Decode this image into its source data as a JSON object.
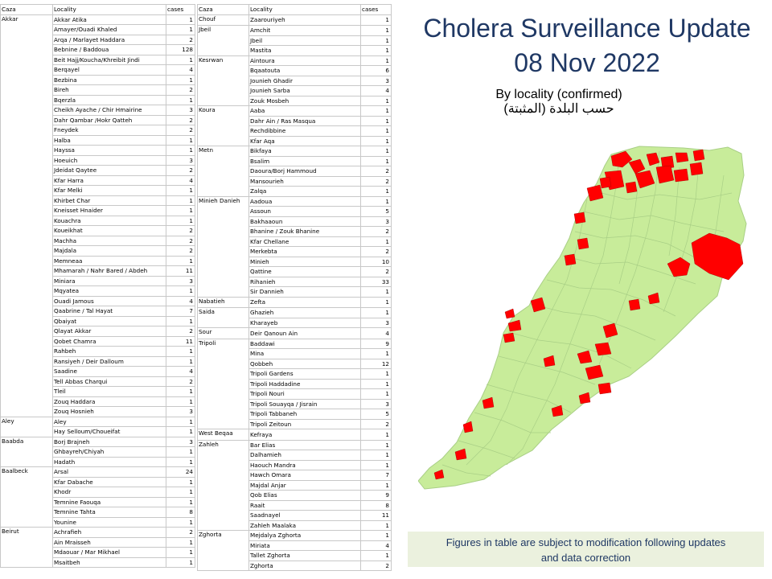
{
  "title": {
    "line1": "Cholera Surveillance Update",
    "line2": "08 Nov 2022"
  },
  "subtitle": {
    "en": "By locality (confirmed)",
    "ar": "حسب البلدة (المثبتة)"
  },
  "note": {
    "line1": "Figures in table are subject to modification following updates",
    "line2": "and data correction"
  },
  "colors": {
    "title": "#1f3864",
    "map_fill": "#c8ec9a",
    "map_borders": "#a9cf86",
    "cases_fill": "#ff0000",
    "note_bg": "#ebf1de"
  },
  "table_headers": {
    "caza": "Caza",
    "locality": "Locality",
    "cases": "cases"
  },
  "table1": [
    {
      "caza": "Akkar",
      "rows": [
        [
          "Akkar Atika",
          "1"
        ],
        [
          "Amayer/Ouadi Khaled",
          "1"
        ],
        [
          "Arqa / Marlayet Haddara",
          "2"
        ],
        [
          "Bebnine / Baddoua",
          "128"
        ],
        [
          "Beit Hajj/Koucha/Khreibit  Jindi",
          "1"
        ],
        [
          "Berqayel",
          "4"
        ],
        [
          "Bezbina",
          "1"
        ],
        [
          "Bireh",
          "2"
        ],
        [
          "Bqerzla",
          "1"
        ],
        [
          "Cheikh Ayache / Chir Hmairine",
          "3"
        ],
        [
          "Dahr Qambar /Hokr Qatteh",
          "2"
        ],
        [
          "Fneydek",
          "2"
        ],
        [
          "Halba",
          "1"
        ],
        [
          "Hayssa",
          "1"
        ],
        [
          "Hoeuich",
          "3"
        ],
        [
          "Jdeidat Qaytee",
          "2"
        ],
        [
          "Kfar Harra",
          "4"
        ],
        [
          "Kfar Melki",
          "1"
        ],
        [
          "Khirbet Char",
          "1"
        ],
        [
          "Kneisset Hnaider",
          "1"
        ],
        [
          "Kouachra",
          "1"
        ],
        [
          "Koueikhat",
          "2"
        ],
        [
          "Machha",
          "2"
        ],
        [
          "Majdala",
          "2"
        ],
        [
          "Memneaa",
          "1"
        ],
        [
          "Mhamarah / Nahr Bared  / Abdeh",
          "11"
        ],
        [
          "Miniara",
          "3"
        ],
        [
          "Mqyatea",
          "1"
        ],
        [
          "Ouadi Jamous",
          "4"
        ],
        [
          "Qaabrine / Tal Hayat",
          "7"
        ],
        [
          "Qbaiyat",
          "1"
        ],
        [
          "Qlayat Akkar",
          "2"
        ],
        [
          "Qobet Chamra",
          "11"
        ],
        [
          "Rahbeh",
          "1"
        ],
        [
          "Ransiyeh / Deir Dalloum",
          "1"
        ],
        [
          "Saadine",
          "4"
        ],
        [
          "Tell Abbas Charqui",
          "2"
        ],
        [
          "Tleil",
          "1"
        ],
        [
          "Zouq Haddara",
          "1"
        ],
        [
          "Zouq Hosnieh",
          "3"
        ]
      ]
    },
    {
      "caza": "Aley",
      "rows": [
        [
          "Aley",
          "1"
        ],
        [
          "Hay Selloum/Choueifat",
          "1"
        ]
      ]
    },
    {
      "caza": "Baabda",
      "rows": [
        [
          "Borj Brajneh",
          "3"
        ],
        [
          "Ghbayreh/Chiyah",
          "1"
        ],
        [
          "Hadath",
          "1"
        ]
      ]
    },
    {
      "caza": "Baalbeck",
      "rows": [
        [
          "Arsal",
          "24"
        ],
        [
          "Kfar Dabache",
          "1"
        ],
        [
          "Khodr",
          "1"
        ],
        [
          "Temnine Faouqa",
          "1"
        ],
        [
          "Temnine Tahta",
          "8"
        ],
        [
          "Younine",
          "1"
        ]
      ]
    },
    {
      "caza": "Beirut",
      "rows": [
        [
          "Achrafieh",
          "2"
        ],
        [
          "Ain Mraisseh",
          "1"
        ],
        [
          "Mdaouar / Mar Mikhael",
          "1"
        ],
        [
          "Msaitbeh",
          "1"
        ]
      ]
    }
  ],
  "table2": [
    {
      "caza": "Chouf",
      "rows": [
        [
          "Zaarouriyeh",
          "1"
        ]
      ]
    },
    {
      "caza": "Jbeil",
      "rows": [
        [
          "Amchit",
          "1"
        ],
        [
          "Jbeil",
          "1"
        ],
        [
          "Mastita",
          "1"
        ]
      ]
    },
    {
      "caza": "Kesrwan",
      "rows": [
        [
          "Aintoura",
          "1"
        ],
        [
          "Bqaatouta",
          "6"
        ],
        [
          "Jounieh Ghadir",
          "3"
        ],
        [
          "Jounieh Sarba",
          "4"
        ],
        [
          "Zouk Mosbeh",
          "1"
        ]
      ]
    },
    {
      "caza": "Koura",
      "rows": [
        [
          "Aaba",
          "1"
        ],
        [
          "Dahr Ain / Ras Masqua",
          "1"
        ],
        [
          "Rechdibbine",
          "1"
        ],
        [
          "Kfar Aqa",
          "1"
        ]
      ]
    },
    {
      "caza": "Metn",
      "rows": [
        [
          "Bikfaya",
          "1"
        ],
        [
          "Bsalim",
          "1"
        ],
        [
          "Daoura/Borj  Hammoud",
          "2"
        ],
        [
          "Mansourieh",
          "2"
        ],
        [
          "Zalqa",
          "1"
        ]
      ]
    },
    {
      "caza": "Minieh Danieh",
      "rows": [
        [
          "Aadoua",
          "1"
        ],
        [
          "Assoun",
          "5"
        ],
        [
          "Bakhaaoun",
          "3"
        ],
        [
          "Bhanine  / Zouk Bhanine",
          "2"
        ],
        [
          "Kfar Chellane",
          "1"
        ],
        [
          "Merkebta",
          "2"
        ],
        [
          "Minieh",
          "10"
        ],
        [
          "Qattine",
          "2"
        ],
        [
          "Rihanieh",
          "33"
        ],
        [
          "Sir Dannieh",
          "1"
        ]
      ]
    },
    {
      "caza": "Nabatieh",
      "rows": [
        [
          "Zefta",
          "1"
        ]
      ]
    },
    {
      "caza": "Saida",
      "rows": [
        [
          "Ghazieh",
          "1"
        ],
        [
          "Kharayeb",
          "3"
        ]
      ]
    },
    {
      "caza": "Sour",
      "rows": [
        [
          "Deir Qanoun Ain",
          "4"
        ]
      ]
    },
    {
      "caza": "Tripoli",
      "rows": [
        [
          "Baddawi",
          "9"
        ],
        [
          "Mina",
          "1"
        ],
        [
          "Qobbeh",
          "12"
        ],
        [
          "Tripoli Gardens",
          "1"
        ],
        [
          "Tripoli Haddadine",
          "1"
        ],
        [
          "Tripoli Nouri",
          "1"
        ],
        [
          "Tripoli Souayqa / Jisrain",
          "3"
        ],
        [
          "Tripoli Tabbaneh",
          "5"
        ],
        [
          "Tripoli Zeitoun",
          "2"
        ]
      ]
    },
    {
      "caza": "West Beqaa",
      "rows": [
        [
          "Kefraya",
          "1"
        ]
      ]
    },
    {
      "caza": "Zahleh",
      "rows": [
        [
          "Bar Elias",
          "1"
        ],
        [
          "Dalhamieh",
          "1"
        ],
        [
          "Haouch Mandra",
          "1"
        ],
        [
          "Hawch Omara",
          "7"
        ],
        [
          "Majdal Anjar",
          "1"
        ],
        [
          "Qob Elias",
          "9"
        ],
        [
          "Raait",
          "8"
        ],
        [
          "Saadnayel",
          "11"
        ],
        [
          "Zahleh Maalaka",
          "1"
        ]
      ]
    },
    {
      "caza": "Zghorta",
      "rows": [
        [
          "Mejdalya Zghorta",
          "1"
        ],
        [
          "Miriata",
          "4"
        ],
        [
          "Tallet Zghorta",
          "1"
        ],
        [
          "Zghorta",
          "2"
        ]
      ]
    }
  ]
}
